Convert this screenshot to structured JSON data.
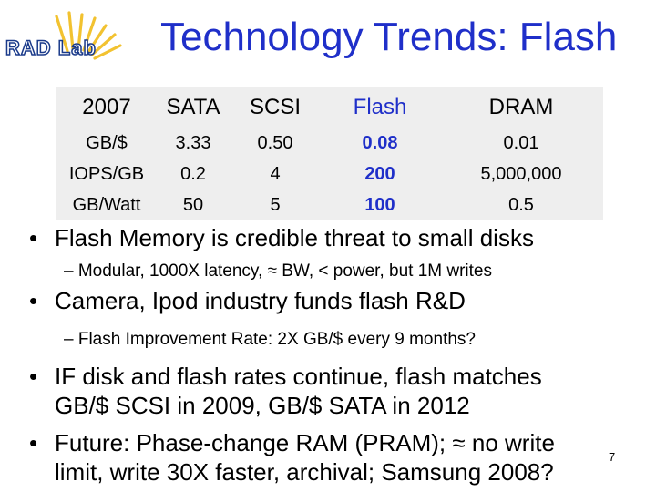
{
  "logo": {
    "text": "RAD Lab"
  },
  "title": "Technology Trends: Flash",
  "table": {
    "header": [
      "2007",
      "SATA",
      "SCSI",
      "Flash",
      "DRAM"
    ],
    "rows": [
      [
        "GB/$",
        "3.33",
        "0.50",
        "0.08",
        "0.01"
      ],
      [
        "IOPS/GB",
        "0.2",
        "4",
        "200",
        "5,000,000"
      ],
      [
        "GB/Watt",
        "50",
        "5",
        "100",
        "0.5"
      ]
    ]
  },
  "bullets": [
    {
      "text": "Flash Memory is credible threat to small disks",
      "sub": "– Modular, 1000X latency, ≈ BW, < power, but 1M writes"
    },
    {
      "text": "Camera, Ipod industry funds flash R&D",
      "sub": "– Flash Improvement Rate: 2X GB/$ every 9 months?"
    },
    {
      "line1": "IF disk and flash rates continue, flash matches",
      "line2": "GB/$ SCSI in 2009, GB/$ SATA in 2012"
    },
    {
      "line1": "Future: Phase-change RAM (PRAM); ≈ no write",
      "line2": "limit, write 30X faster, archival; Samsung 2008?"
    }
  ],
  "page_number": "7",
  "colors": {
    "title": "#1f2fc9",
    "flash_column": "#1f2fc9",
    "table_bg": "#eeeeee",
    "logo_rays": "#f2c230"
  }
}
